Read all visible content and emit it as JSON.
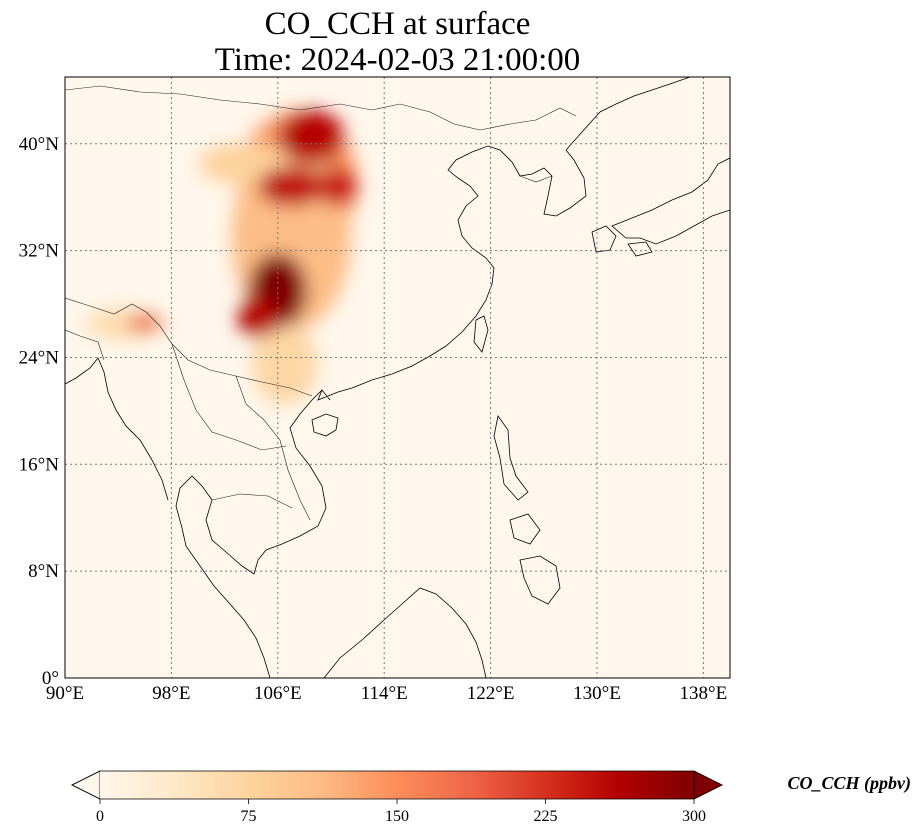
{
  "title_line1": "CO_CCH at surface",
  "title_line2": "Time: 2024-02-03 21:00:00",
  "map": {
    "lon_range": [
      90,
      140
    ],
    "lat_range": [
      0,
      45
    ],
    "lon_ticks": [
      {
        "value": 90,
        "label": "90°E"
      },
      {
        "value": 98,
        "label": "98°E"
      },
      {
        "value": 106,
        "label": "106°E"
      },
      {
        "value": 114,
        "label": "114°E"
      },
      {
        "value": 122,
        "label": "122°E"
      },
      {
        "value": 130,
        "label": "130°E"
      },
      {
        "value": 138,
        "label": "138°E"
      }
    ],
    "lat_ticks": [
      {
        "value": 0,
        "label": "0°"
      },
      {
        "value": 8,
        "label": "8°N"
      },
      {
        "value": 16,
        "label": "16°N"
      },
      {
        "value": 24,
        "label": "24°N"
      },
      {
        "value": 32,
        "label": "32°N"
      },
      {
        "value": 40,
        "label": "40°N"
      }
    ],
    "gridlines": true,
    "colormap": "OrRd"
  },
  "colorbar": {
    "label": "CO_CCH (ppbv)",
    "vmin": 0,
    "vmax": 300,
    "extend": "both",
    "ticks": [
      {
        "value": 0,
        "label": "0"
      },
      {
        "value": 75,
        "label": "75"
      },
      {
        "value": 150,
        "label": "150"
      },
      {
        "value": 225,
        "label": "225"
      },
      {
        "value": 300,
        "label": "300"
      }
    ],
    "colors": [
      "#fff7ec",
      "#fee8c8",
      "#fdd49e",
      "#fdbb84",
      "#fc8d59",
      "#ef6548",
      "#d7301f",
      "#b30000",
      "#7f0000"
    ]
  },
  "plumes": [
    {
      "lon": 107.5,
      "lat": 37.0,
      "rlon": 4.5,
      "rlat": 5.5,
      "value": 140
    },
    {
      "lon": 107.0,
      "lat": 33.0,
      "rlon": 4.5,
      "rlat": 7.0,
      "value": 110
    },
    {
      "lon": 103.5,
      "lat": 38.5,
      "rlon": 3.5,
      "rlat": 1.5,
      "value": 80
    },
    {
      "lon": 106.5,
      "lat": 23.5,
      "rlon": 2.5,
      "rlat": 3.0,
      "value": 70
    },
    {
      "lon": 94.5,
      "lat": 26.5,
      "rlon": 3.0,
      "rlat": 1.2,
      "value": 60
    },
    {
      "lon": 108.5,
      "lat": 40.5,
      "rlon": 2.5,
      "rlat": 2.0,
      "value": 260
    },
    {
      "lon": 107.0,
      "lat": 36.8,
      "rlon": 2.5,
      "rlat": 1.5,
      "value": 250
    },
    {
      "lon": 110.5,
      "lat": 36.8,
      "rlon": 1.5,
      "rlat": 1.5,
      "value": 240
    },
    {
      "lon": 106.0,
      "lat": 29.0,
      "rlon": 2.2,
      "rlat": 2.8,
      "value": 300
    },
    {
      "lon": 104.5,
      "lat": 27.0,
      "rlon": 1.5,
      "rlat": 1.5,
      "value": 260
    },
    {
      "lon": 96.0,
      "lat": 26.6,
      "rlon": 1.3,
      "rlat": 0.6,
      "value": 200
    }
  ]
}
